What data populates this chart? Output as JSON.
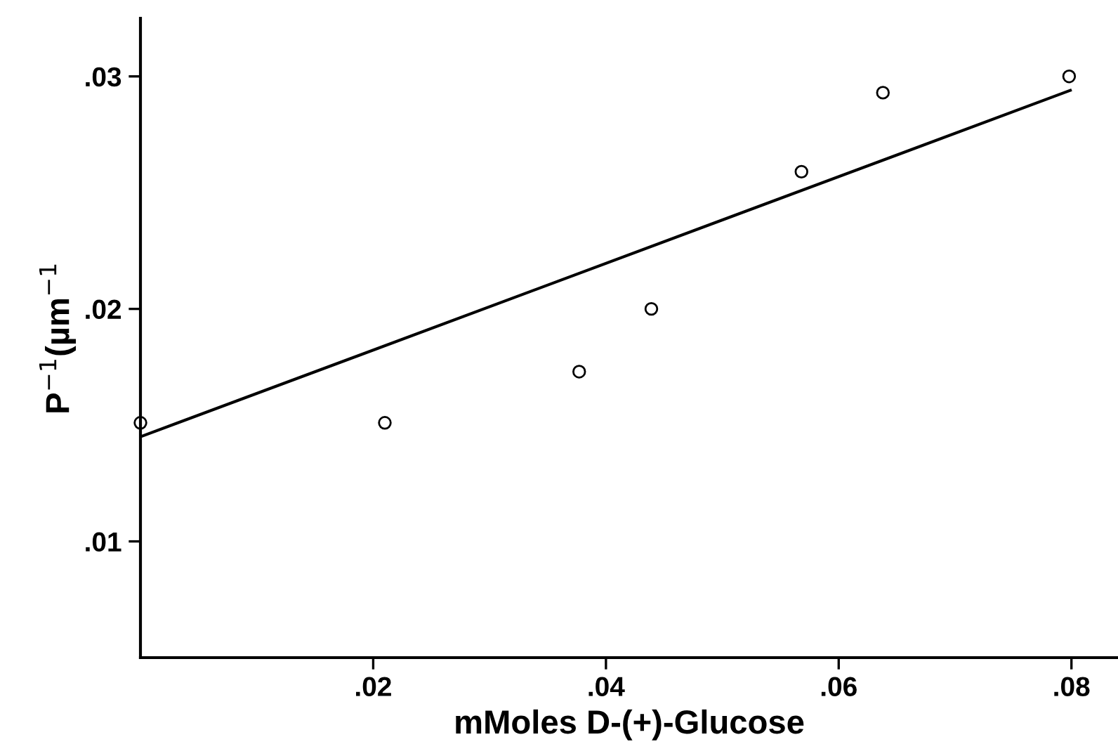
{
  "chart_data": {
    "type": "scatter",
    "xlabel": "mMoles D-(+)-Glucose",
    "ylabel": "P$^{−1}$(µm$^{−1}$",
    "xlim": [
      0,
      0.084
    ],
    "ylim": [
      0.005,
      0.0325
    ],
    "xticks": [
      {
        "value": 0.02,
        "label": ".02"
      },
      {
        "value": 0.04,
        "label": ".04"
      },
      {
        "value": 0.06,
        "label": ".06"
      },
      {
        "value": 0.08,
        "label": ".08"
      }
    ],
    "yticks": [
      {
        "value": 0.01,
        "label": ".01"
      },
      {
        "value": 0.02,
        "label": ".02"
      },
      {
        "value": 0.03,
        "label": ".03"
      }
    ],
    "grid": false,
    "legend": false,
    "series": [
      {
        "color": "#000000",
        "marker": "circle",
        "x": [
          0.0,
          0.021,
          0.0377,
          0.0439,
          0.0568,
          0.0638,
          0.0798
        ],
        "values": [
          0.0151,
          0.0151,
          0.0173,
          0.02,
          0.0259,
          0.0293,
          0.03
        ]
      },
      {
        "type": "line",
        "color": "#000000",
        "marker": "none",
        "line_style": "solid",
        "x": [
          0.0,
          0.0799
        ],
        "values": [
          0.0145,
          0.0294
        ]
      }
    ]
  }
}
